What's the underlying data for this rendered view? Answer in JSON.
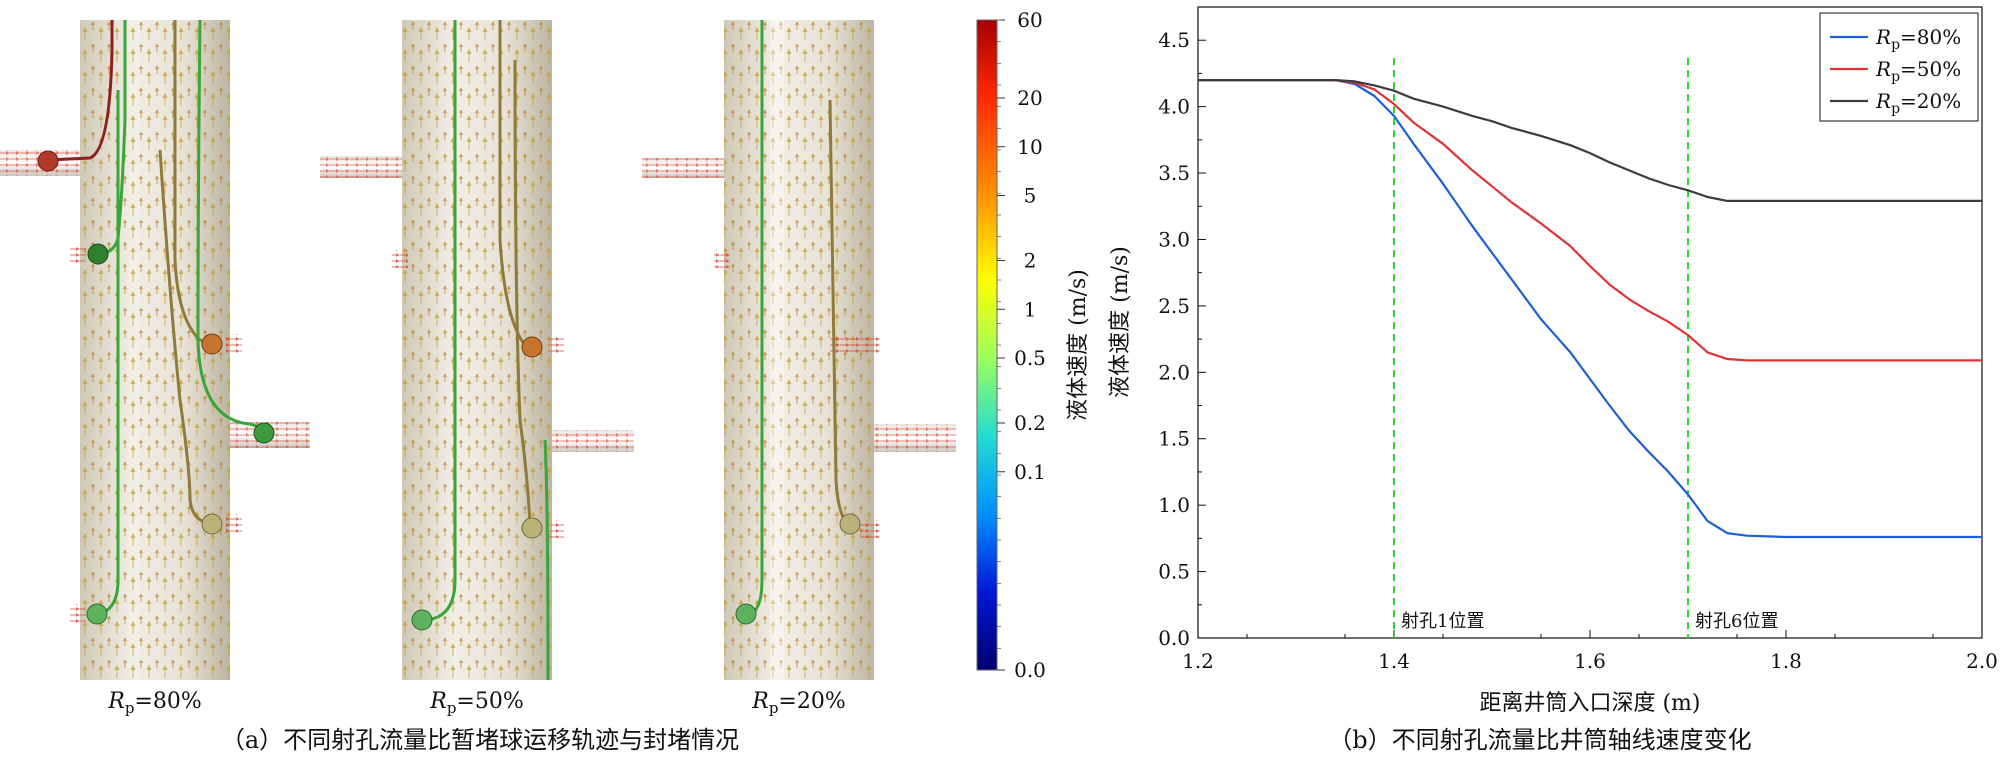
{
  "panel_a": {
    "cylinders": [
      {
        "rp_symbol": "R",
        "rp_sub": "p",
        "rp_value": "=80%"
      },
      {
        "rp_symbol": "R",
        "rp_sub": "p",
        "rp_value": "=50%"
      },
      {
        "rp_symbol": "R",
        "rp_sub": "p",
        "rp_value": "=20%"
      }
    ],
    "caption": "（a）不同射孔流量比暂堵球运移轨迹与封堵情况",
    "colorbar": {
      "title": "液体速度 (m/s)",
      "ticks": [
        "60",
        "20",
        "10",
        "5",
        "2",
        "1",
        "0.5",
        "0.2",
        "0.1",
        "0.0"
      ],
      "colors": [
        "#a50000",
        "#ff2a00",
        "#ff9a00",
        "#ffff00",
        "#9cff5e",
        "#23dcd0",
        "#0090ff",
        "#0018d6",
        "#00006e"
      ]
    },
    "colors": {
      "cylinder": "#e7e2d6",
      "trajectory_green": "#3aa53a",
      "trajectory_olive": "#8f7a3a",
      "trajectory_red": "#8b2020",
      "ball_red": "#b13a2a",
      "ball_orange": "#c7742e",
      "ball_green": "#3e9a3e",
      "ball_khaki": "#b9b37a",
      "arrow_gold": "#c99a2e",
      "arrow_red": "#d03a2a"
    }
  },
  "panel_b": {
    "caption": "（b）不同射孔流量比井筒轴线速度变化",
    "markers": [
      {
        "x": 1.4,
        "label": "射孔1位置"
      },
      {
        "x": 1.7,
        "label": "射孔6位置"
      }
    ],
    "marker_color": "#22dd22"
  },
  "chart_data": {
    "type": "line",
    "xlabel": "距离井筒入口深度 (m)",
    "ylabel": "液体速度 (m/s)",
    "xlim": [
      1.2,
      2.0
    ],
    "ylim": [
      0.0,
      4.75
    ],
    "xticks": [
      "1.2",
      "1.4",
      "1.6",
      "1.8",
      "2.0"
    ],
    "yticks": [
      "0.0",
      "0.5",
      "1.0",
      "1.5",
      "2.0",
      "2.5",
      "3.0",
      "3.5",
      "4.0",
      "4.5"
    ],
    "legend_position": "top-right",
    "grid": false,
    "series": [
      {
        "name": "Rp=80%",
        "name_symbol": "R",
        "name_sub": "p",
        "name_value": "=80%",
        "color": "#1f5fd6",
        "x": [
          1.2,
          1.25,
          1.3,
          1.34,
          1.36,
          1.38,
          1.4,
          1.42,
          1.45,
          1.48,
          1.5,
          1.52,
          1.55,
          1.58,
          1.6,
          1.62,
          1.64,
          1.66,
          1.68,
          1.7,
          1.72,
          1.74,
          1.76,
          1.8,
          1.9,
          2.0
        ],
        "y": [
          4.2,
          4.2,
          4.2,
          4.2,
          4.17,
          4.08,
          3.93,
          3.72,
          3.42,
          3.1,
          2.9,
          2.7,
          2.4,
          2.15,
          1.95,
          1.75,
          1.56,
          1.4,
          1.25,
          1.08,
          0.88,
          0.79,
          0.77,
          0.76,
          0.76,
          0.76
        ]
      },
      {
        "name": "Rp=50%",
        "name_symbol": "R",
        "name_sub": "p",
        "name_value": "=50%",
        "color": "#e03232",
        "x": [
          1.2,
          1.25,
          1.3,
          1.34,
          1.36,
          1.38,
          1.4,
          1.42,
          1.45,
          1.48,
          1.5,
          1.52,
          1.55,
          1.58,
          1.6,
          1.62,
          1.64,
          1.66,
          1.68,
          1.7,
          1.72,
          1.74,
          1.76,
          1.8,
          1.9,
          2.0
        ],
        "y": [
          4.2,
          4.2,
          4.2,
          4.2,
          4.18,
          4.13,
          4.02,
          3.88,
          3.72,
          3.52,
          3.4,
          3.28,
          3.12,
          2.95,
          2.8,
          2.66,
          2.55,
          2.46,
          2.38,
          2.28,
          2.15,
          2.1,
          2.09,
          2.09,
          2.09,
          2.09
        ]
      },
      {
        "name": "Rp=20%",
        "name_symbol": "R",
        "name_sub": "p",
        "name_value": "=20%",
        "color": "#3c3c3c",
        "x": [
          1.2,
          1.25,
          1.3,
          1.34,
          1.36,
          1.38,
          1.4,
          1.42,
          1.45,
          1.48,
          1.5,
          1.52,
          1.55,
          1.58,
          1.6,
          1.62,
          1.64,
          1.66,
          1.68,
          1.7,
          1.72,
          1.74,
          1.76,
          1.8,
          1.9,
          2.0
        ],
        "y": [
          4.2,
          4.2,
          4.2,
          4.2,
          4.19,
          4.16,
          4.12,
          4.06,
          4.0,
          3.93,
          3.89,
          3.84,
          3.78,
          3.71,
          3.65,
          3.58,
          3.52,
          3.46,
          3.41,
          3.37,
          3.32,
          3.29,
          3.29,
          3.29,
          3.29,
          3.29
        ]
      }
    ]
  }
}
